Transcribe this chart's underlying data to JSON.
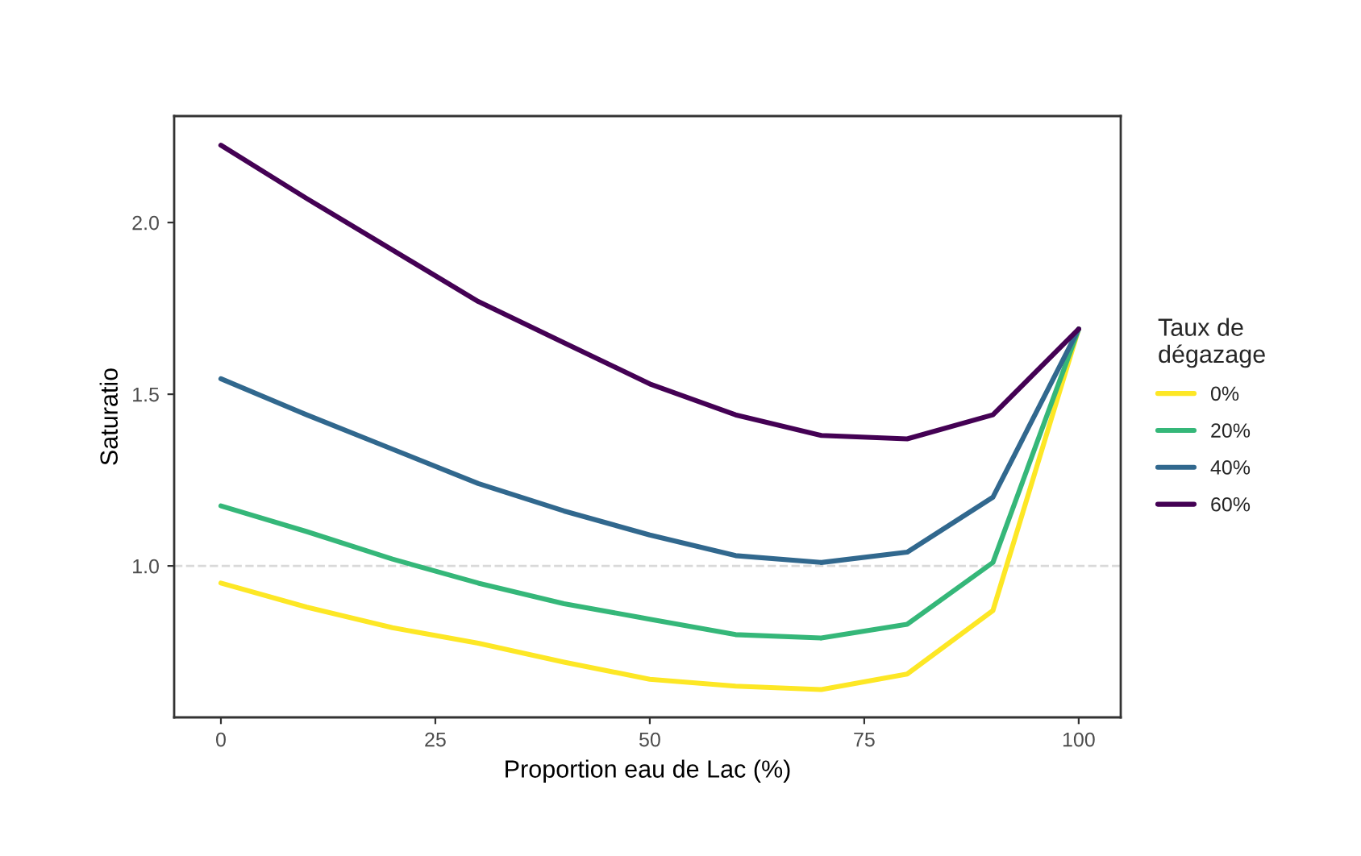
{
  "chart_data": {
    "type": "line",
    "xlabel": "Proportion eau de Lac (%)",
    "ylabel": "Saturatio",
    "legend_title": "Taux de\ndégazage",
    "x": [
      0,
      10,
      20,
      30,
      40,
      50,
      60,
      70,
      80,
      90,
      100
    ],
    "series": [
      {
        "name": "0%",
        "color": "#fde725",
        "values": [
          0.95,
          0.88,
          0.82,
          0.775,
          0.72,
          0.67,
          0.65,
          0.64,
          0.685,
          0.87,
          1.69
        ]
      },
      {
        "name": "20%",
        "color": "#35b779",
        "values": [
          1.175,
          1.1,
          1.02,
          0.95,
          0.89,
          0.845,
          0.8,
          0.79,
          0.83,
          1.01,
          1.69
        ]
      },
      {
        "name": "40%",
        "color": "#31688e",
        "values": [
          1.545,
          1.44,
          1.34,
          1.24,
          1.16,
          1.09,
          1.03,
          1.01,
          1.04,
          1.2,
          1.69
        ]
      },
      {
        "name": "60%",
        "color": "#440154",
        "values": [
          2.225,
          2.07,
          1.92,
          1.77,
          1.65,
          1.53,
          1.44,
          1.38,
          1.37,
          1.44,
          1.69
        ]
      }
    ],
    "xlim": [
      -5.45,
      104.9
    ],
    "ylim": [
      0.559,
      2.31
    ],
    "xticks": [
      0,
      25,
      50,
      75,
      100
    ],
    "yticks": [
      {
        "value": 1.0,
        "label": "1.0"
      },
      {
        "value": 1.5,
        "label": "1.5"
      },
      {
        "value": 2.0,
        "label": "2.0"
      }
    ],
    "ref_lines": [
      {
        "axis": "y",
        "value": 1.0,
        "color": "#d9d9d9",
        "line_style": "dashed"
      }
    ],
    "grid": false,
    "legend": "right",
    "line_style": "solid",
    "marker": "none"
  }
}
